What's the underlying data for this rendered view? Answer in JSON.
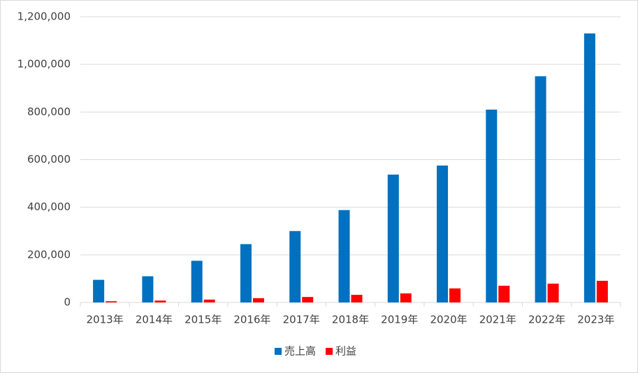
{
  "chart_data": {
    "type": "bar",
    "categories": [
      "2013年",
      "2014年",
      "2015年",
      "2016年",
      "2017年",
      "2018年",
      "2019年",
      "2020年",
      "2021年",
      "2022年",
      "2023年"
    ],
    "series": [
      {
        "name": "売上高",
        "color": "#0070c0",
        "values": [
          95000,
          110000,
          175000,
          245000,
          300000,
          388000,
          537000,
          575000,
          810000,
          950000,
          1130000
        ]
      },
      {
        "name": "利益",
        "color": "#ff0000",
        "values": [
          5000,
          8000,
          12000,
          18000,
          23000,
          32000,
          38000,
          59000,
          70000,
          79000,
          91000
        ]
      }
    ],
    "ylim": [
      0,
      1200000
    ],
    "yticks": [
      0,
      {
        "value": 200000,
        "label": "200,000"
      },
      {
        "value": 400000,
        "label": "400,000"
      },
      {
        "value": 600000,
        "label": "600,000"
      },
      {
        "value": 800000,
        "label": "800,000"
      },
      {
        "value": 1000000,
        "label": "1,000,000"
      },
      {
        "value": 1200000,
        "label": "1,200,000"
      }
    ],
    "grid": true,
    "legend": "bottom"
  }
}
